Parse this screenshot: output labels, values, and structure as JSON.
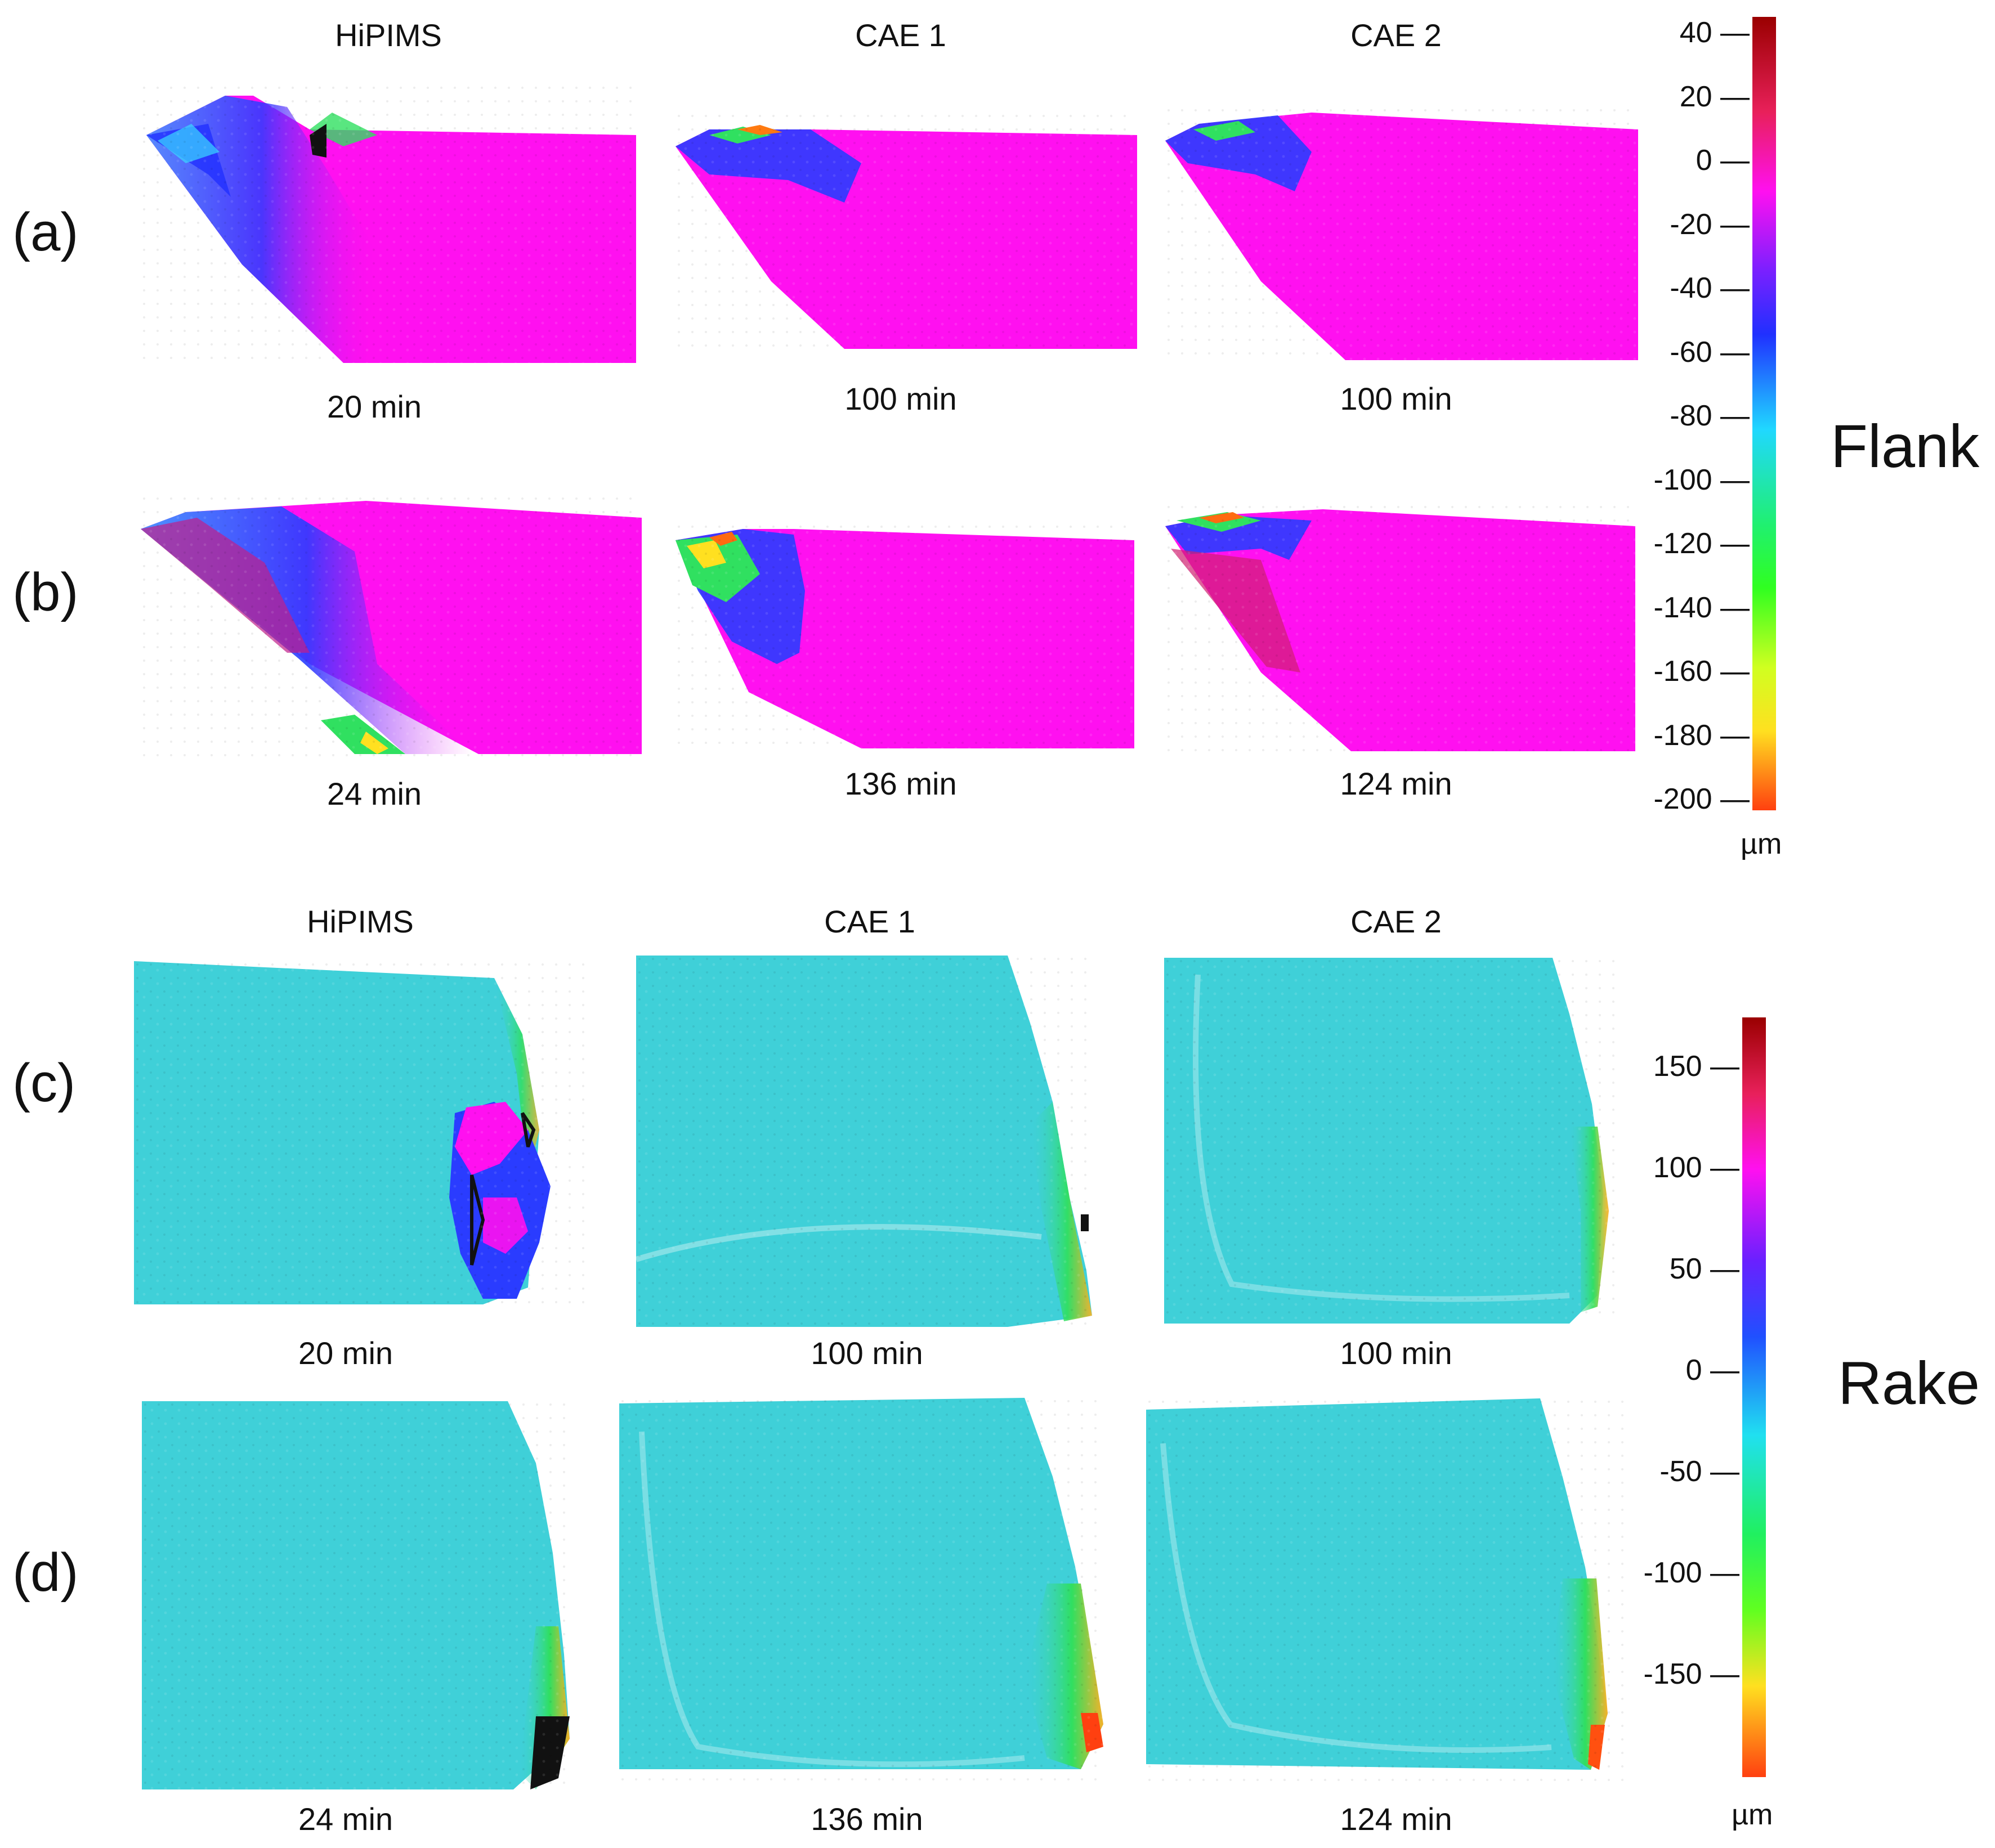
{
  "flank": {
    "column_headers": [
      "HiPIMS",
      "CAE 1",
      "CAE 2"
    ],
    "row_labels": [
      "(a)",
      "(b)"
    ],
    "times_row_a": [
      "20 min",
      "100 min",
      "100 min"
    ],
    "times_row_b": [
      "24 min",
      "136 min",
      "124 min"
    ],
    "side_label": "Flank",
    "colorbar": {
      "ticks": [
        "40",
        "20",
        "0",
        "-20",
        "-40",
        "-60",
        "-80",
        "-100",
        "-120",
        "-140",
        "-160",
        "-180",
        "-200"
      ],
      "unit": "µm",
      "range": [
        -200,
        45
      ]
    }
  },
  "rake": {
    "column_headers": [
      "HiPIMS",
      "CAE 1",
      "CAE 2"
    ],
    "row_labels": [
      "(c)",
      "(d)"
    ],
    "times_row_c": [
      "20 min",
      "100 min",
      "100 min"
    ],
    "times_row_d": [
      "24 min",
      "136 min",
      "124 min"
    ],
    "side_label": "Rake",
    "colorbar": {
      "ticks": [
        "150",
        "100",
        "50",
        "0",
        "-50",
        "-100",
        "-150"
      ],
      "unit": "µm",
      "range": [
        -200,
        175
      ]
    }
  },
  "colors": {
    "flank_surface": "#ff10f0",
    "rake_surface": "#3fd0d8",
    "deep_blue": "#2a3cff",
    "green": "#2fe05a",
    "yellow": "#ffe020",
    "orange": "#ff6a10"
  }
}
